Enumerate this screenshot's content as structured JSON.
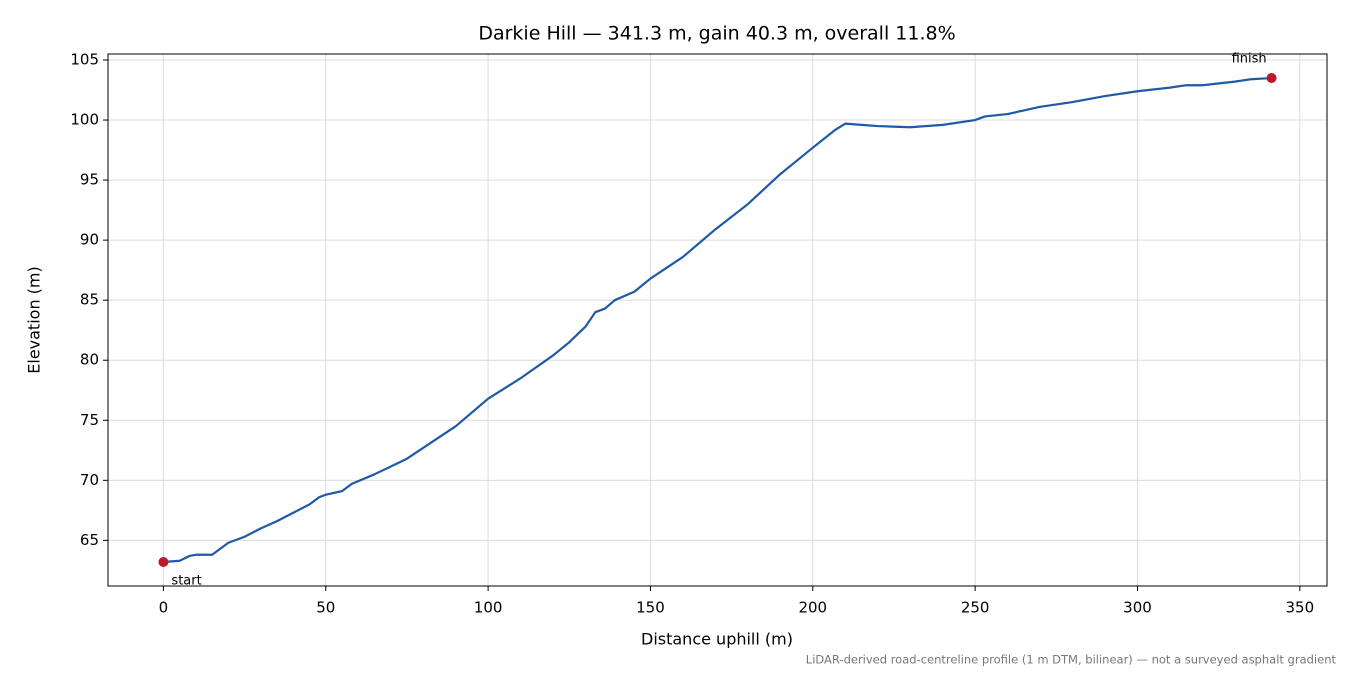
{
  "chart_data": {
    "type": "line",
    "title": "Darkie Hill — 341.3 m, gain 40.3 m, overall 11.8%",
    "x_label": "Distance uphill (m)",
    "y_label": "Elevation (m)",
    "footnote": "LiDAR-derived road-centreline profile (1 m DTM, bilinear) — not a surveyed asphalt gradient",
    "x": [
      0,
      5,
      8,
      10,
      15,
      20,
      25,
      30,
      35,
      40,
      45,
      48,
      50,
      55,
      58,
      65,
      75,
      85,
      90,
      100,
      110,
      120,
      125,
      130,
      133,
      136,
      139,
      145,
      150,
      160,
      170,
      180,
      190,
      200,
      207,
      210,
      215,
      220,
      230,
      240,
      250,
      253,
      260,
      265,
      270,
      280,
      290,
      300,
      310,
      315,
      320,
      330,
      335,
      341.3
    ],
    "values": [
      63.2,
      63.3,
      63.7,
      63.8,
      63.8,
      64.8,
      65.3,
      66.0,
      66.6,
      67.3,
      68.0,
      68.6,
      68.8,
      69.1,
      69.7,
      70.5,
      71.8,
      73.6,
      74.5,
      76.8,
      78.5,
      80.4,
      81.5,
      82.8,
      84.0,
      84.3,
      85.0,
      85.7,
      86.8,
      88.6,
      90.9,
      93.0,
      95.5,
      97.7,
      99.2,
      99.7,
      99.6,
      99.5,
      99.4,
      99.6,
      100.0,
      100.3,
      100.5,
      100.8,
      101.1,
      101.5,
      102.0,
      102.4,
      102.7,
      102.9,
      102.9,
      103.2,
      103.4,
      103.5
    ],
    "color": "#1f5aa6",
    "points": [
      {
        "label": "start",
        "x": 0,
        "y": 63.2,
        "color": "#c0182a"
      },
      {
        "label": "finish",
        "x": 341.3,
        "y": 103.5,
        "color": "#c0182a"
      }
    ],
    "xlim": [
      -17.07,
      358.37
    ],
    "ylim": [
      61.2,
      105.5
    ],
    "xticks": [
      0,
      50,
      100,
      150,
      200,
      250,
      300,
      350
    ],
    "yticks": [
      65,
      70,
      75,
      80,
      85,
      90,
      95,
      100,
      105
    ],
    "grid": true
  }
}
